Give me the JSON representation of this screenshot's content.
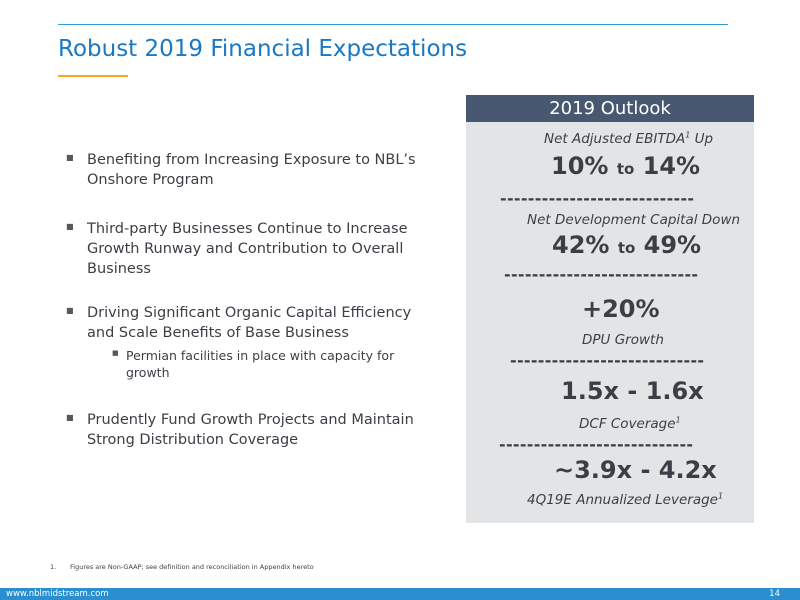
{
  "title": "Robust 2019 Financial Expectations",
  "bullets": [
    {
      "text": "Benefiting from Increasing Exposure to NBL’s Onshore Program"
    },
    {
      "text": "Third-party Businesses Continue to Increase Growth Runway and Contribution to Overall Business"
    },
    {
      "text": "Driving Significant Organic Capital Efficiency and Scale Benefits of Base Business",
      "sub": "Permian facilities in place with capacity for growth"
    },
    {
      "text": "Prudently Fund Growth Projects and Maintain Strong Distribution Coverage"
    }
  ],
  "outlook": {
    "header": "2019 Outlook",
    "divider": "----------------------------",
    "items": [
      {
        "label": "Net Adjusted EBITDA",
        "label_sup": "1",
        "label_suffix": " Up",
        "value_low": "10%",
        "connector": "to",
        "value_high": "14%"
      },
      {
        "label": "Net Development Capital Down",
        "value_low": "42%",
        "connector": "to",
        "value_high": "49%"
      },
      {
        "value": "+20%",
        "label": "DPU Growth"
      },
      {
        "value": "1.5x - 1.6x",
        "label": "DCF Coverage",
        "label_sup": "1"
      },
      {
        "value": "~3.9x - 4.2x",
        "label": "4Q19E Annualized Leverage",
        "label_sup": "1"
      }
    ]
  },
  "footnote": {
    "number": "1.",
    "text": "Figures are Non-GAAP; see definition and reconciliation in Appendix hereto"
  },
  "footer": {
    "url": "www.nblmidstream.com",
    "page": "14"
  },
  "colors": {
    "title": "#1b78c2",
    "accent": "#f5a623",
    "panel_header": "#475870",
    "panel_bg": "#e3e4e6",
    "footer": "#2a8fd0"
  }
}
